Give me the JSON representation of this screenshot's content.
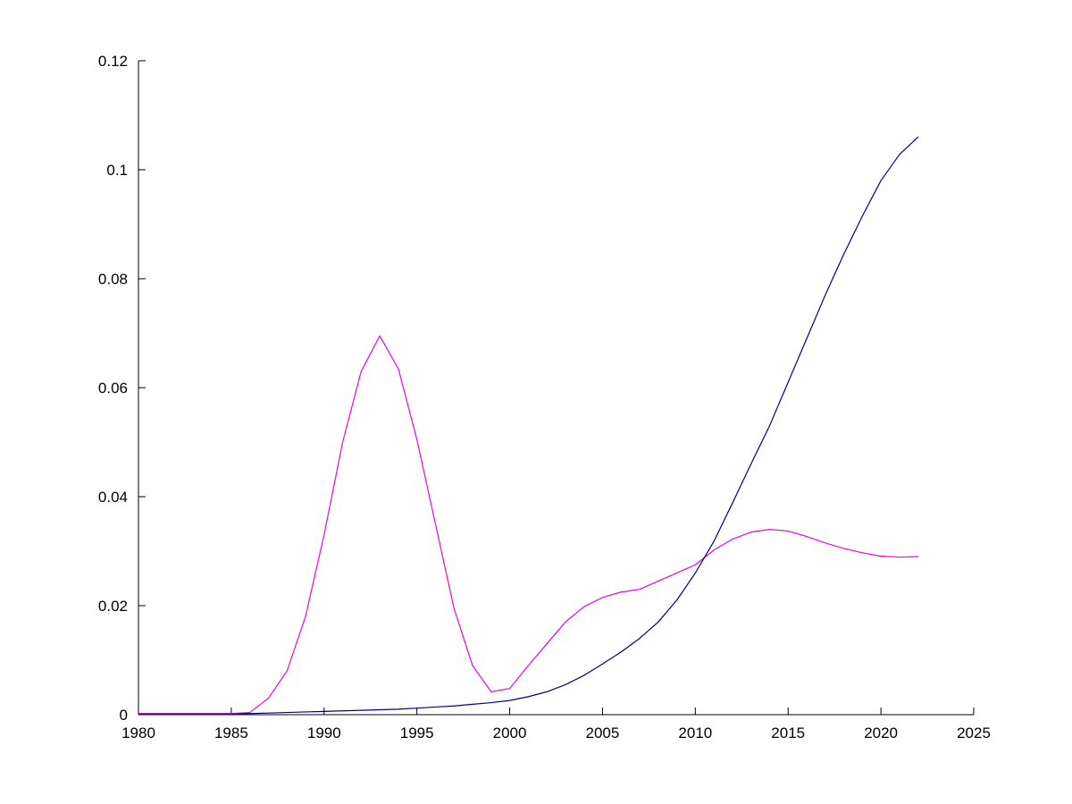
{
  "page": {
    "background": "#ffffff"
  },
  "chart_data": {
    "type": "line",
    "title": "",
    "xlabel": "",
    "ylabel": "",
    "grid": false,
    "legend": null,
    "xlim": [
      1980,
      2025
    ],
    "ylim": [
      0,
      0.12
    ],
    "x_ticks": [
      1980,
      1985,
      1990,
      1995,
      2000,
      2005,
      2010,
      2015,
      2020,
      2025
    ],
    "x_tick_labels": [
      "1980",
      "1985",
      "1990",
      "1995",
      "2000",
      "2005",
      "2010",
      "2015",
      "2020",
      "2025"
    ],
    "y_ticks": [
      0,
      0.02,
      0.04,
      0.06,
      0.08,
      0.1,
      0.12
    ],
    "y_tick_labels": [
      "0",
      "0.02",
      "0.04",
      "0.06",
      "0.08",
      "0.1",
      "0.12"
    ],
    "x": [
      1980,
      1981,
      1982,
      1983,
      1984,
      1985,
      1986,
      1987,
      1988,
      1989,
      1990,
      1991,
      1992,
      1993,
      1994,
      1995,
      1996,
      1997,
      1998,
      1999,
      2000,
      2001,
      2002,
      2003,
      2004,
      2005,
      2006,
      2007,
      2008,
      2009,
      2010,
      2011,
      2012,
      2013,
      2014,
      2015,
      2016,
      2017,
      2018,
      2019,
      2020,
      2021,
      2022
    ],
    "series": [
      {
        "name": "magenta-series",
        "color": "#ee00ee",
        "values": [
          0.0002,
          0.0002,
          0.0002,
          0.0002,
          0.0002,
          0.0002,
          0.0004,
          0.003,
          0.008,
          0.018,
          0.033,
          0.05,
          0.063,
          0.0695,
          0.0635,
          0.0505,
          0.035,
          0.0195,
          0.009,
          0.0042,
          0.0048,
          0.009,
          0.013,
          0.017,
          0.0198,
          0.0215,
          0.0225,
          0.023,
          0.0245,
          0.026,
          0.0275,
          0.0302,
          0.0322,
          0.0335,
          0.034,
          0.0337,
          0.0327,
          0.0315,
          0.0305,
          0.0297,
          0.0291,
          0.0289,
          0.029
        ]
      },
      {
        "name": "blue-series",
        "color": "#00008b",
        "values": [
          0.0001,
          0.0001,
          0.0001,
          0.0001,
          0.0001,
          0.0001,
          0.0002,
          0.0003,
          0.0004,
          0.0005,
          0.0006,
          0.0007,
          0.0008,
          0.0009,
          0.001,
          0.0012,
          0.0014,
          0.0016,
          0.0019,
          0.0022,
          0.0026,
          0.0033,
          0.0042,
          0.0055,
          0.0072,
          0.0093,
          0.0115,
          0.014,
          0.017,
          0.021,
          0.026,
          0.0318,
          0.0388,
          0.046,
          0.053,
          0.061,
          0.069,
          0.077,
          0.0845,
          0.0915,
          0.098,
          0.1028,
          0.106
        ]
      }
    ]
  }
}
